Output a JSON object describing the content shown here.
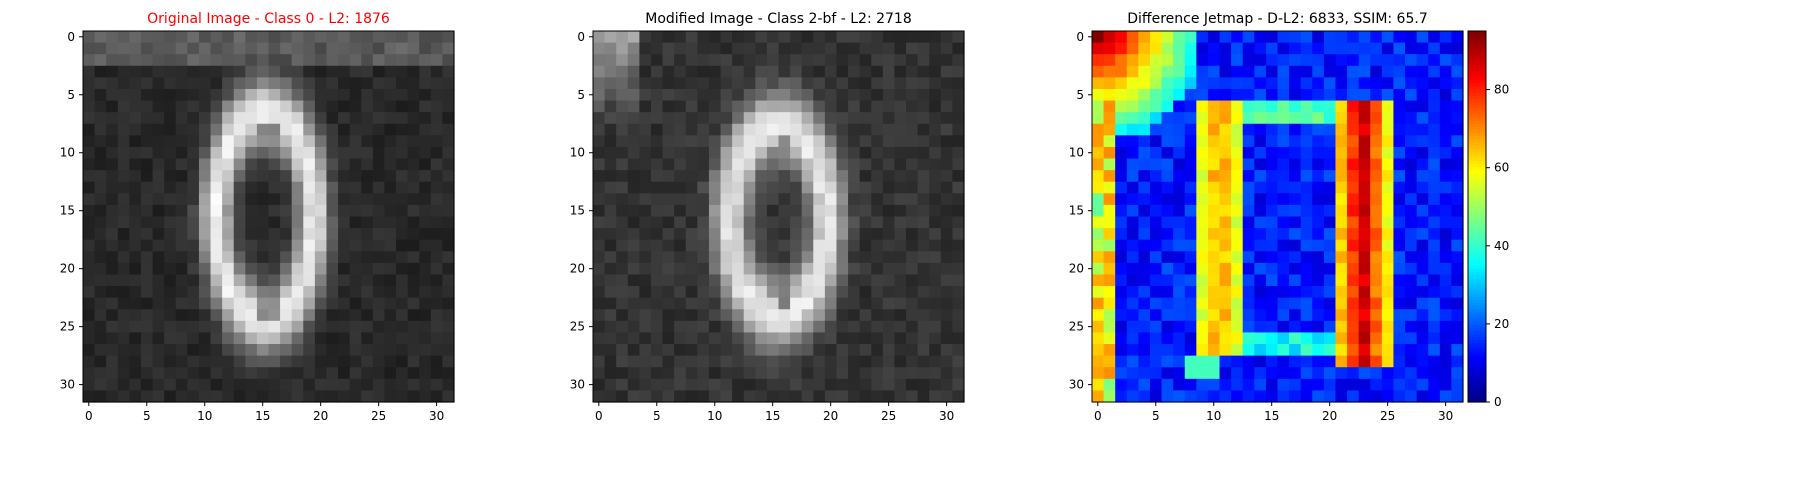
{
  "chart_data": [
    {
      "type": "heatmap",
      "title": "Original Image - Class 0 - L2: 1876",
      "title_color": "#ff0000",
      "colormap": "gray",
      "grid": false,
      "xlim": [
        -0.5,
        31.5
      ],
      "ylim": [
        31.5,
        -0.5
      ],
      "xticks": [
        0,
        5,
        10,
        15,
        20,
        25,
        30
      ],
      "yticks": [
        0,
        5,
        10,
        15,
        20,
        25,
        30
      ],
      "image_size": [
        32,
        32
      ],
      "content": "handwritten-style digit 0, bright white oval ring on dark background"
    },
    {
      "type": "heatmap",
      "title": "Modified Image - Class 2-bf - L2: 2718",
      "title_color": "#000000",
      "colormap": "gray",
      "grid": false,
      "xlim": [
        -0.5,
        31.5
      ],
      "ylim": [
        31.5,
        -0.5
      ],
      "xticks": [
        0,
        5,
        10,
        15,
        20,
        25,
        30
      ],
      "yticks": [
        0,
        5,
        10,
        15,
        20,
        25,
        30
      ],
      "image_size": [
        32,
        32
      ],
      "content": "digit 0, slightly blurred oval ring with bright top-left corner"
    },
    {
      "type": "heatmap",
      "title": "Difference Jetmap - D-L2: 6833, SSIM: 65.7",
      "title_color": "#000000",
      "colormap": "jet",
      "grid": false,
      "xlim": [
        -0.5,
        31.5
      ],
      "ylim": [
        31.5,
        -0.5
      ],
      "xticks": [
        0,
        5,
        10,
        15,
        20,
        25,
        30
      ],
      "yticks": [
        0,
        5,
        10,
        15,
        20,
        25,
        30
      ],
      "image_size": [
        32,
        32
      ],
      "colorbar": {
        "range": [
          0,
          95
        ],
        "ticks": [
          0,
          20,
          40,
          60,
          80
        ]
      },
      "content": "difference map: red hot spots top-left and along right side of ring, green/yellow along left side of ring, blue background"
    }
  ]
}
